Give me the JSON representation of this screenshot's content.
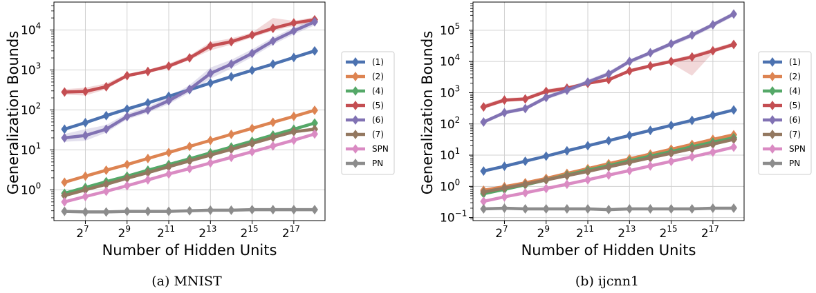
{
  "chart_data": [
    {
      "type": "line",
      "caption": "(a) MNIST",
      "xlabel": "Number of Hidden Units",
      "ylabel": "Generalization Bounds",
      "x_scale": "log2",
      "y_scale": "log10",
      "x": [
        64,
        128,
        256,
        512,
        1024,
        2048,
        4096,
        8192,
        16384,
        32768,
        65536,
        131072,
        262144
      ],
      "xlim": [
        45,
        370000
      ],
      "ylim": [
        0.17,
        50000
      ],
      "x_ticks": [
        {
          "value": 128,
          "base": "2",
          "exp": "7"
        },
        {
          "value": 512,
          "base": "2",
          "exp": "9"
        },
        {
          "value": 2048,
          "base": "2",
          "exp": "11"
        },
        {
          "value": 8192,
          "base": "2",
          "exp": "13"
        },
        {
          "value": 32768,
          "base": "2",
          "exp": "15"
        },
        {
          "value": 131072,
          "base": "2",
          "exp": "17"
        }
      ],
      "y_ticks": [
        {
          "value": 1,
          "base": "10",
          "exp": "0"
        },
        {
          "value": 10,
          "base": "10",
          "exp": "1"
        },
        {
          "value": 100,
          "base": "10",
          "exp": "2"
        },
        {
          "value": 1000,
          "base": "10",
          "exp": "3"
        },
        {
          "value": 10000,
          "base": "10",
          "exp": "4"
        }
      ],
      "grid": true,
      "legend_position": "right",
      "series": [
        {
          "name": "(1)",
          "color": "#4c72b0",
          "values": [
            33,
            48,
            72,
            105,
            150,
            220,
            320,
            470,
            680,
            980,
            1400,
            2050,
            3000
          ]
        },
        {
          "name": "(2)",
          "color": "#dd8452",
          "values": [
            1.55,
            2.2,
            3.1,
            4.3,
            6.1,
            8.6,
            12.2,
            17.3,
            24.5,
            34.5,
            49,
            69,
            98
          ]
        },
        {
          "name": "(4)",
          "color": "#55a868",
          "values": [
            0.82,
            1.15,
            1.6,
            2.2,
            3.1,
            4.3,
            6.0,
            8.4,
            11.8,
            16.5,
            23.5,
            33,
            47
          ]
        },
        {
          "name": "(5)",
          "color": "#c44e52",
          "values": [
            280,
            290,
            380,
            720,
            920,
            1250,
            2000,
            4000,
            5100,
            7500,
            11000,
            15000,
            18000
          ],
          "band_lo": [
            240,
            230,
            330,
            650,
            850,
            1100,
            1800,
            3100,
            4300,
            6500,
            9500,
            12500,
            15500
          ],
          "band_hi": [
            330,
            360,
            460,
            800,
            1000,
            1450,
            2300,
            5000,
            6200,
            8600,
            20000,
            17000,
            21000
          ]
        },
        {
          "name": "(6)",
          "color": "#8172b3",
          "values": [
            20,
            23,
            33,
            68,
            100,
            170,
            330,
            820,
            1400,
            2600,
            5300,
            9500,
            16000
          ],
          "band_lo": [
            16,
            17,
            27,
            58,
            85,
            140,
            270,
            600,
            1100,
            2100,
            4300,
            7800,
            13000
          ],
          "band_hi": [
            25,
            33,
            42,
            82,
            120,
            210,
            420,
            1150,
            1800,
            3300,
            6500,
            11500,
            19000
          ]
        },
        {
          "name": "(7)",
          "color": "#937860",
          "values": [
            0.72,
            1.0,
            1.38,
            1.95,
            2.7,
            3.8,
            5.3,
            7.4,
            10.3,
            14.5,
            20.5,
            28.5,
            33
          ]
        },
        {
          "name": "SPN",
          "color": "#da8bc3",
          "values": [
            0.5,
            0.68,
            0.92,
            1.27,
            1.78,
            2.5,
            3.4,
            4.7,
            6.5,
            9.0,
            12.5,
            17.5,
            25
          ]
        },
        {
          "name": "PN",
          "color": "#8c8c8c",
          "values": [
            0.29,
            0.28,
            0.28,
            0.29,
            0.29,
            0.29,
            0.3,
            0.31,
            0.31,
            0.32,
            0.32,
            0.32,
            0.32
          ]
        }
      ]
    },
    {
      "type": "line",
      "caption": "(b) ijcnn1",
      "xlabel": "Number of Hidden Units",
      "ylabel": "Generalization Bounds",
      "x_scale": "log2",
      "y_scale": "log10",
      "x": [
        64,
        128,
        256,
        512,
        1024,
        2048,
        4096,
        8192,
        16384,
        32768,
        65536,
        131072,
        262144
      ],
      "xlim": [
        45,
        370000
      ],
      "ylim": [
        0.08,
        800000
      ],
      "x_ticks": [
        {
          "value": 128,
          "base": "2",
          "exp": "7"
        },
        {
          "value": 512,
          "base": "2",
          "exp": "9"
        },
        {
          "value": 2048,
          "base": "2",
          "exp": "11"
        },
        {
          "value": 8192,
          "base": "2",
          "exp": "13"
        },
        {
          "value": 32768,
          "base": "2",
          "exp": "15"
        },
        {
          "value": 131072,
          "base": "2",
          "exp": "17"
        }
      ],
      "y_ticks": [
        {
          "value": 0.1,
          "base": "10",
          "exp": "−1"
        },
        {
          "value": 1,
          "base": "10",
          "exp": "0"
        },
        {
          "value": 10,
          "base": "10",
          "exp": "1"
        },
        {
          "value": 100,
          "base": "10",
          "exp": "2"
        },
        {
          "value": 1000,
          "base": "10",
          "exp": "3"
        },
        {
          "value": 10000,
          "base": "10",
          "exp": "4"
        },
        {
          "value": 100000,
          "base": "10",
          "exp": "5"
        }
      ],
      "grid": true,
      "legend_position": "right",
      "series": [
        {
          "name": "(1)",
          "color": "#4c72b0",
          "values": [
            3.1,
            4.4,
            6.4,
            9.3,
            13.8,
            20,
            29,
            43,
            62,
            90,
            130,
            190,
            280
          ]
        },
        {
          "name": "(2)",
          "color": "#dd8452",
          "values": [
            0.75,
            0.98,
            1.3,
            1.8,
            2.6,
            3.7,
            5.3,
            7.6,
            10.8,
            15.5,
            22,
            32,
            45
          ]
        },
        {
          "name": "(4)",
          "color": "#55a868",
          "values": [
            0.58,
            0.8,
            1.12,
            1.6,
            2.3,
            3.3,
            4.6,
            6.6,
            9.3,
            13,
            18.5,
            26,
            36
          ]
        },
        {
          "name": "(5)",
          "color": "#c44e52",
          "values": [
            350,
            580,
            630,
            1100,
            1400,
            2000,
            2600,
            5000,
            7200,
            10000,
            14000,
            22000,
            35000
          ],
          "band_lo": [
            300,
            500,
            560,
            950,
            1250,
            1800,
            2300,
            4400,
            6300,
            8800,
            3500,
            19000,
            30000
          ],
          "band_hi": [
            420,
            680,
            730,
            1300,
            1600,
            2300,
            3000,
            5700,
            8200,
            11500,
            16500,
            26000,
            41000
          ]
        },
        {
          "name": "(6)",
          "color": "#8172b3",
          "values": [
            115,
            230,
            310,
            700,
            1200,
            2200,
            4000,
            10000,
            19000,
            37000,
            70000,
            150000,
            330000
          ],
          "band_lo": [
            100,
            200,
            270,
            600,
            1000,
            1900,
            3400,
            8500,
            16000,
            31000,
            58000,
            125000,
            280000
          ],
          "band_hi": [
            130,
            270,
            360,
            820,
            1400,
            2600,
            4800,
            11500,
            22000,
            43000,
            82000,
            175000,
            390000
          ]
        },
        {
          "name": "(7)",
          "color": "#937860",
          "values": [
            0.66,
            0.88,
            1.17,
            1.6,
            2.2,
            3.0,
            4.2,
            5.9,
            8.2,
            11.5,
            16,
            22.5,
            32
          ]
        },
        {
          "name": "SPN",
          "color": "#da8bc3",
          "values": [
            0.33,
            0.46,
            0.62,
            0.85,
            1.17,
            1.62,
            2.3,
            3.2,
            4.5,
            6.3,
            8.8,
            12.5,
            18
          ]
        },
        {
          "name": "PN",
          "color": "#8c8c8c",
          "values": [
            0.19,
            0.2,
            0.19,
            0.19,
            0.19,
            0.19,
            0.18,
            0.19,
            0.19,
            0.19,
            0.19,
            0.2,
            0.2
          ]
        }
      ]
    }
  ]
}
